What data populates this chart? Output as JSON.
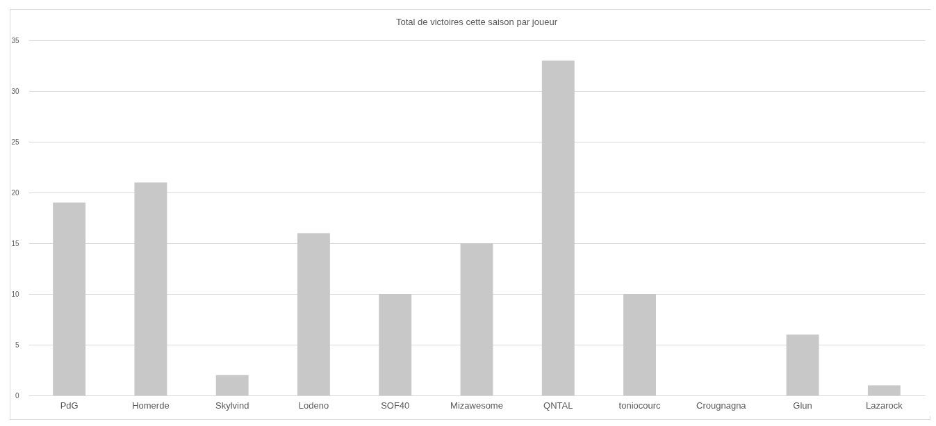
{
  "chart_data": {
    "type": "bar",
    "title": "Total de victoires cette saison par joueur",
    "categories": [
      "PdG",
      "Homerde",
      "Skylvind",
      "Lodeno",
      "SOF40",
      "Mizawesome",
      "QNTAL",
      "toniocourc",
      "Crougnagna",
      "Glun",
      "Lazarock"
    ],
    "values": [
      19,
      21,
      2,
      16,
      10,
      15,
      33,
      10,
      0,
      6,
      1
    ],
    "color": "#c8c8c8",
    "ylim": [
      0,
      35
    ],
    "yticks": [
      0,
      5,
      10,
      15,
      20,
      25,
      30,
      35
    ],
    "grid": "y"
  }
}
